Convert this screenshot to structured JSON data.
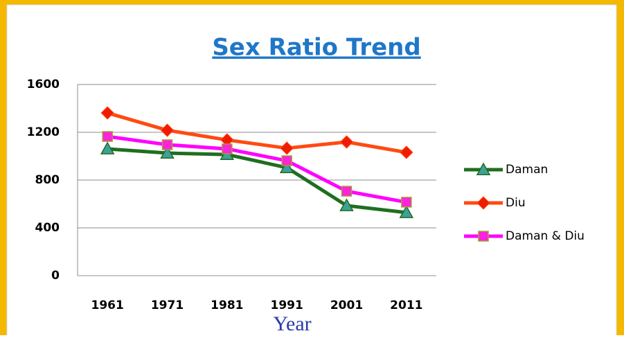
{
  "chart_data": {
    "type": "line",
    "title": "Sex Ratio Trend",
    "x_label": "Year",
    "categories": [
      "1961",
      "1971",
      "1981",
      "1991",
      "2001",
      "2011"
    ],
    "series": [
      {
        "name": "Daman",
        "color": "#1f6e1f",
        "marker": "triangle",
        "marker_color": "#3f9f9a",
        "values": [
          1061,
          1026,
          1014,
          904,
          586,
          528
        ]
      },
      {
        "name": "Diu",
        "color": "#ff4a12",
        "marker": "diamond",
        "marker_color": "#f01c00",
        "values": [
          1362,
          1217,
          1136,
          1067,
          1119,
          1032
        ]
      },
      {
        "name": "Daman & Diu",
        "color": "#ff00ff",
        "marker": "square",
        "marker_color": "#ff22dd",
        "values": [
          1165,
          1096,
          1061,
          962,
          707,
          615
        ]
      }
    ],
    "ylim": [
      0,
      1600
    ],
    "yticks": [
      0,
      400,
      800,
      1200,
      1600
    ],
    "grid": true,
    "legend": "right"
  }
}
